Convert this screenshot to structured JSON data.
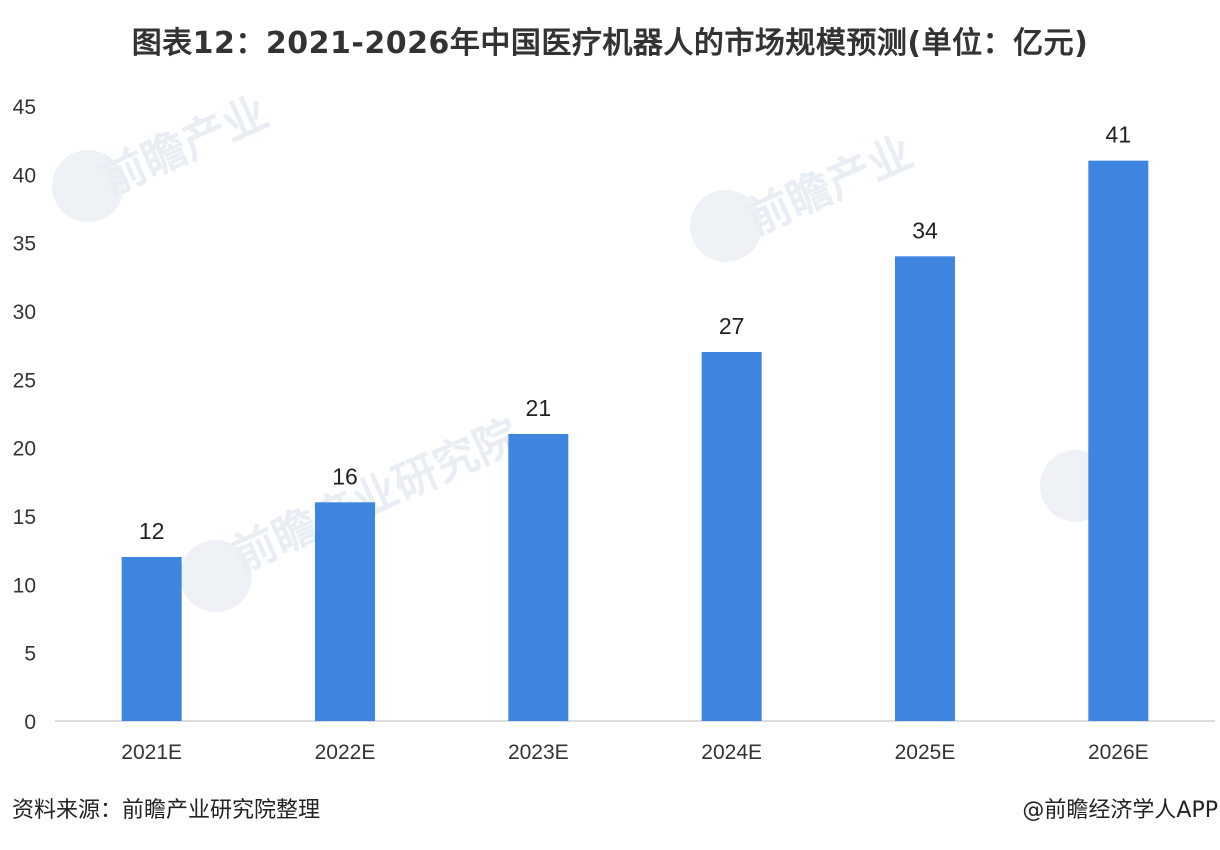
{
  "chart_data": {
    "type": "bar",
    "title": "图表12：2021-2026年中国医疗机器人的市场规模预测(单位：亿元)",
    "categories": [
      "2021E",
      "2022E",
      "2023E",
      "2024E",
      "2025E",
      "2026E"
    ],
    "values": [
      12,
      16,
      21,
      27,
      34,
      41
    ],
    "ylim": [
      0,
      45
    ],
    "yticks": [
      0,
      5,
      10,
      15,
      20,
      25,
      30,
      35,
      40,
      45
    ],
    "bar_color": "#3d85de",
    "grid": false,
    "legend": "none"
  },
  "footer": {
    "source": "资料来源：前瞻产业研究院整理",
    "credit": "@前瞻经济学人APP"
  },
  "watermark": {
    "text": "前瞻产业研究院"
  }
}
